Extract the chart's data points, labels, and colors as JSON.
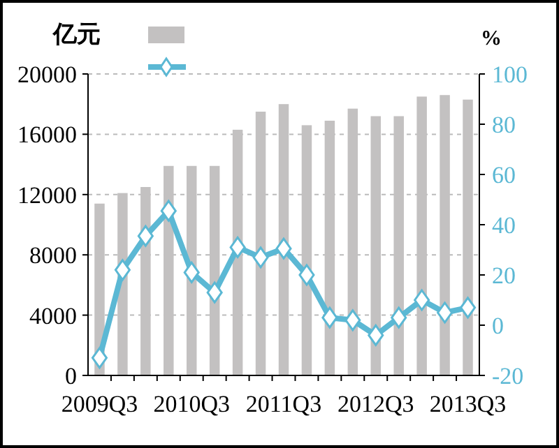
{
  "chart_data": {
    "type": "bar",
    "ylabel": "亿元",
    "y2label": "%",
    "categories": [
      "2009Q3",
      null,
      null,
      null,
      "2010Q3",
      null,
      null,
      null,
      "2011Q3",
      null,
      null,
      null,
      "2012Q3",
      null,
      null,
      null,
      "2013Q3"
    ],
    "series": [
      {
        "color": "#c3c1c1",
        "values": [
          11400,
          12100,
          12500,
          13900,
          13900,
          13900,
          16300,
          17500,
          18000,
          16600,
          16900,
          17700,
          17200,
          17200,
          18500,
          18600,
          18300
        ]
      },
      {
        "type": "line",
        "axis": "y2",
        "color": "#5bb8d4",
        "marker": "diamond",
        "values": [
          -13,
          22,
          35.5,
          45.5,
          21,
          13,
          31,
          27,
          30.5,
          20,
          3,
          2,
          -4,
          3,
          10,
          5,
          7
        ]
      }
    ],
    "ylim": [
      0,
      20000
    ],
    "yticks": [
      0,
      4000,
      8000,
      12000,
      16000,
      20000
    ],
    "y2lim": [
      -20,
      100
    ],
    "y2ticks": [
      -20,
      0,
      20,
      40,
      60,
      80,
      100
    ],
    "grid": "y"
  }
}
